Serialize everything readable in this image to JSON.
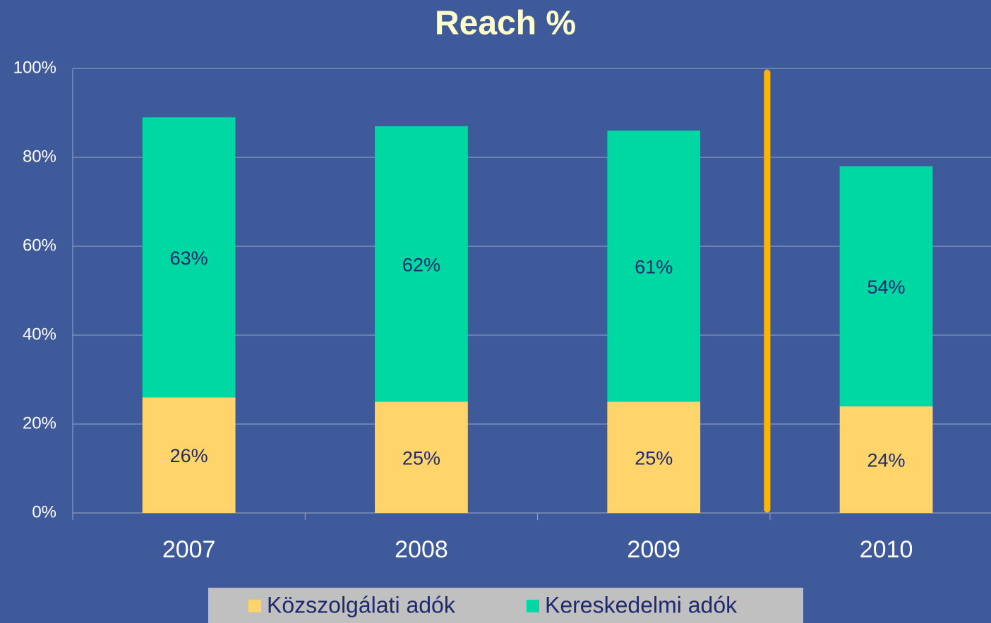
{
  "chart_data": {
    "type": "stacked_bar",
    "title": "Reach %",
    "categories": [
      "2007",
      "2008",
      "2009",
      "2010"
    ],
    "series": [
      {
        "name": "Közszolgálati adók",
        "color": "#ffd56b",
        "values": [
          26,
          25,
          25,
          24
        ],
        "value_labels": [
          "26%",
          "25%",
          "25%",
          "24%"
        ]
      },
      {
        "name": "Kereskedelmi adók",
        "color": "#00d8a4",
        "values": [
          63,
          62,
          61,
          54
        ],
        "value_labels": [
          "63%",
          "62%",
          "61%",
          "54%"
        ]
      }
    ],
    "ylim": [
      0,
      100
    ],
    "yticks": [
      {
        "value": 0,
        "label": "0%"
      },
      {
        "value": 20,
        "label": "20%"
      },
      {
        "value": 40,
        "label": "40%"
      },
      {
        "value": 60,
        "label": "60%"
      },
      {
        "value": 80,
        "label": "80%"
      },
      {
        "value": 100,
        "label": "100%"
      }
    ],
    "grid": true,
    "legend": "bottom"
  }
}
